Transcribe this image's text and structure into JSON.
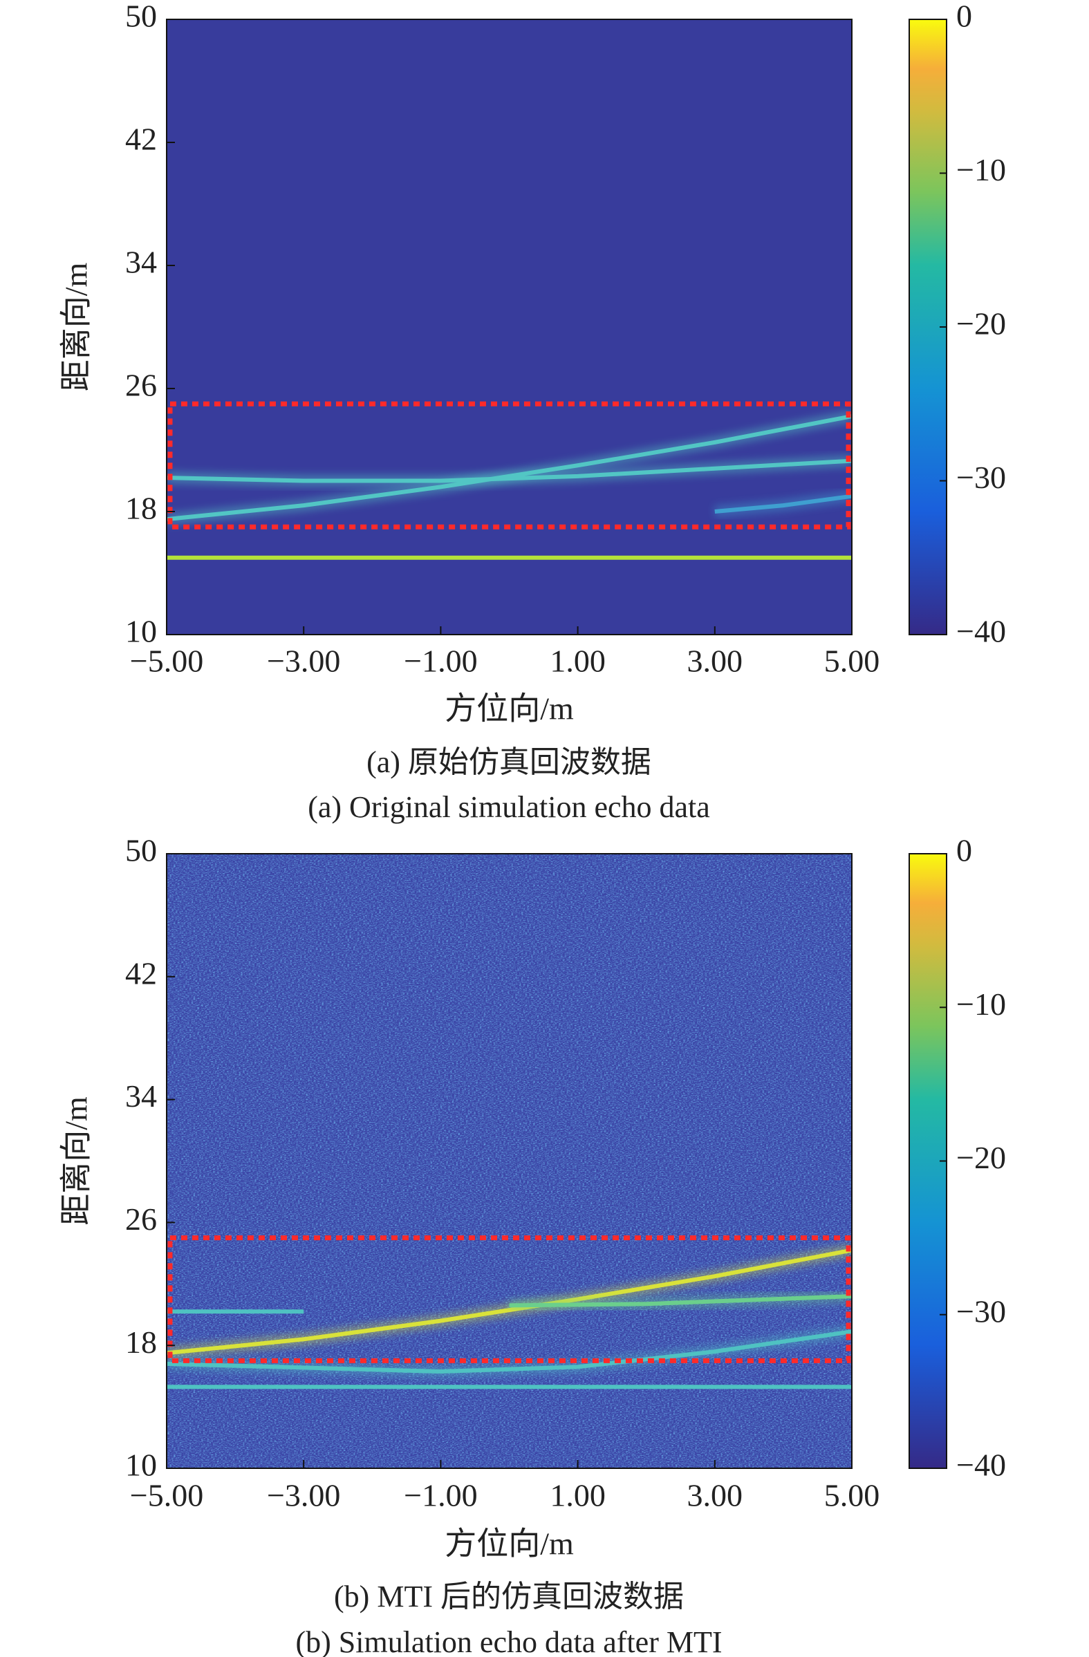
{
  "chart_data": [
    {
      "type": "heatmap",
      "xlabel": "方位向/m",
      "ylabel": "距离向/m",
      "caption": "(a) 原始仿真回波数据",
      "caption_en": "(a) Original simulation echo data",
      "xlim": [
        -5,
        5
      ],
      "ylim": [
        10,
        50
      ],
      "xticks": [
        {
          "value": -5,
          "label": "−5.00"
        },
        {
          "value": -3,
          "label": "−3.00"
        },
        {
          "value": -1,
          "label": "−1.00"
        },
        {
          "value": 1,
          "label": "1.00"
        },
        {
          "value": 3,
          "label": "3.00"
        },
        {
          "value": 5,
          "label": "5.00"
        }
      ],
      "yticks": [
        10,
        18,
        26,
        34,
        42,
        50
      ],
      "clim": [
        -40,
        0
      ],
      "cticks": [
        0,
        {
          "value": -10,
          "label": "−10"
        },
        {
          "value": -20,
          "label": "−20"
        },
        {
          "value": -30,
          "label": "−30"
        },
        {
          "value": -40,
          "label": "−40"
        }
      ],
      "colormap": "parula",
      "background_color": "#383c9c",
      "noise": false,
      "series": [
        {
          "color": "#b4e23a",
          "x": [
            -5,
            5
          ],
          "values": [
            15,
            15
          ]
        },
        {
          "color": "#52c6c4",
          "x": [
            -5,
            -3,
            -1,
            1,
            3,
            5
          ],
          "values": [
            17.5,
            18.4,
            19.6,
            21.0,
            22.5,
            24.2
          ]
        },
        {
          "color": "#52c6c4",
          "x": [
            -5,
            -3,
            -1,
            1,
            3,
            5
          ],
          "values": [
            20.2,
            20.0,
            20.0,
            20.3,
            20.8,
            21.3
          ]
        },
        {
          "color": "#3f9fd0",
          "x": [
            3,
            4,
            5
          ],
          "values": [
            18.0,
            18.4,
            19.0
          ]
        }
      ],
      "highlight_box": {
        "x": [
          -4.95,
          4.95
        ],
        "y": [
          17,
          25
        ],
        "color": "#ff2a2a"
      }
    },
    {
      "type": "heatmap",
      "xlabel": "方位向/m",
      "ylabel": "距离向/m",
      "caption": "(b) MTI 后的仿真回波数据",
      "caption_en": "(b) Simulation echo data after MTI",
      "xlim": [
        -5,
        5
      ],
      "ylim": [
        10,
        50
      ],
      "xticks": [
        {
          "value": -5,
          "label": "−5.00"
        },
        {
          "value": -3,
          "label": "−3.00"
        },
        {
          "value": -1,
          "label": "−1.00"
        },
        {
          "value": 1,
          "label": "1.00"
        },
        {
          "value": 3,
          "label": "3.00"
        },
        {
          "value": 5,
          "label": "5.00"
        }
      ],
      "yticks": [
        10,
        18,
        26,
        34,
        42,
        50
      ],
      "clim": [
        -40,
        0
      ],
      "cticks": [
        0,
        {
          "value": -10,
          "label": "−10"
        },
        {
          "value": -20,
          "label": "−20"
        },
        {
          "value": -30,
          "label": "−30"
        },
        {
          "value": -40,
          "label": "−40"
        }
      ],
      "colormap": "parula",
      "background_color": "#3b45a6",
      "noise": true,
      "series": [
        {
          "color": "#d9e23a",
          "x": [
            -5,
            -3,
            -1,
            1,
            3,
            5
          ],
          "values": [
            17.5,
            18.4,
            19.6,
            21.0,
            22.5,
            24.2
          ]
        },
        {
          "color": "#4fc2c2",
          "x": [
            -5,
            -3
          ],
          "values": [
            20.2,
            20.2
          ]
        },
        {
          "color": "#6bcf8c",
          "x": [
            0,
            2,
            5
          ],
          "values": [
            20.6,
            20.7,
            21.2
          ]
        },
        {
          "color": "#4fc2c2",
          "x": [
            -5,
            -1,
            1,
            3,
            5
          ],
          "values": [
            16.8,
            16.3,
            16.6,
            17.6,
            18.9
          ]
        },
        {
          "color": "#4fc2c2",
          "x": [
            -5,
            5
          ],
          "values": [
            15.3,
            15.3
          ]
        }
      ],
      "highlight_box": {
        "x": [
          -4.95,
          4.95
        ],
        "y": [
          17,
          25
        ],
        "color": "#ff2a2a"
      }
    }
  ]
}
